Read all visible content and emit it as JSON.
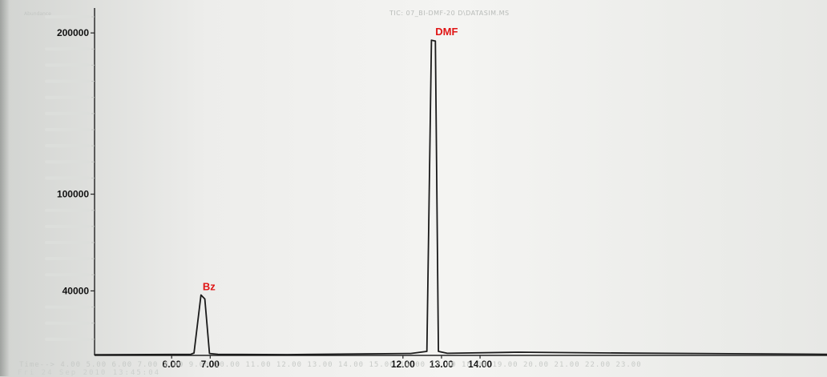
{
  "header": {
    "title": "TIC: 07_BI-DMF-20 D\\DATASIM.MS",
    "ylabel": "Abundance"
  },
  "footer": {
    "line1": "Time-->   4.00  5.00   6.00   7.00   8.00   9.00   10.00  11.00  12.00  13.00  14.00  15.00  16.00  17.00  18.00  19.00  20.00  21.00  22.00  23.00",
    "line2": "Fri 24 Sep 2010 13:45:04"
  },
  "chart_data": {
    "type": "line",
    "title": "TIC: 07_BI-DMF-20 D\\DATASIM.MS",
    "xlabel": "",
    "ylabel": "Abundance",
    "xlim": [
      4.0,
      23.0
    ],
    "ylim": [
      0,
      210000
    ],
    "x_tick_labels": [
      "6.00",
      "7.00",
      "12.00",
      "13.00",
      "14.00"
    ],
    "x_tick_values": [
      6.0,
      7.0,
      12.0,
      13.0,
      14.0
    ],
    "y_tick_labels": [
      "40000",
      "100000",
      "200000"
    ],
    "y_tick_values": [
      40000,
      100000,
      200000
    ],
    "faint_y_ticks": [
      10000,
      20000,
      30000,
      50000,
      60000,
      70000,
      80000,
      90000,
      110000,
      120000,
      130000,
      140000,
      150000,
      160000,
      170000,
      180000,
      190000,
      210000
    ],
    "grid": false,
    "series": [
      {
        "color": "#1a1a1a",
        "x": [
          4.0,
          6.0,
          6.5,
          6.58,
          6.76,
          6.86,
          6.98,
          7.2,
          9.0,
          12.2,
          12.62,
          12.74,
          12.84,
          12.92,
          13.15,
          15.0,
          18.0,
          23.0
        ],
        "y": [
          400,
          600,
          700,
          1500,
          37500,
          35000,
          1200,
          700,
          500,
          1200,
          2500,
          195500,
          195000,
          2500,
          1300,
          2000,
          1400,
          700
        ]
      }
    ],
    "annotations": [
      {
        "text": "Bz",
        "x": 6.76,
        "y": 37500,
        "color": "#e01414"
      },
      {
        "text": "DMF",
        "x": 12.8,
        "y": 195500,
        "color": "#e01414"
      }
    ]
  }
}
